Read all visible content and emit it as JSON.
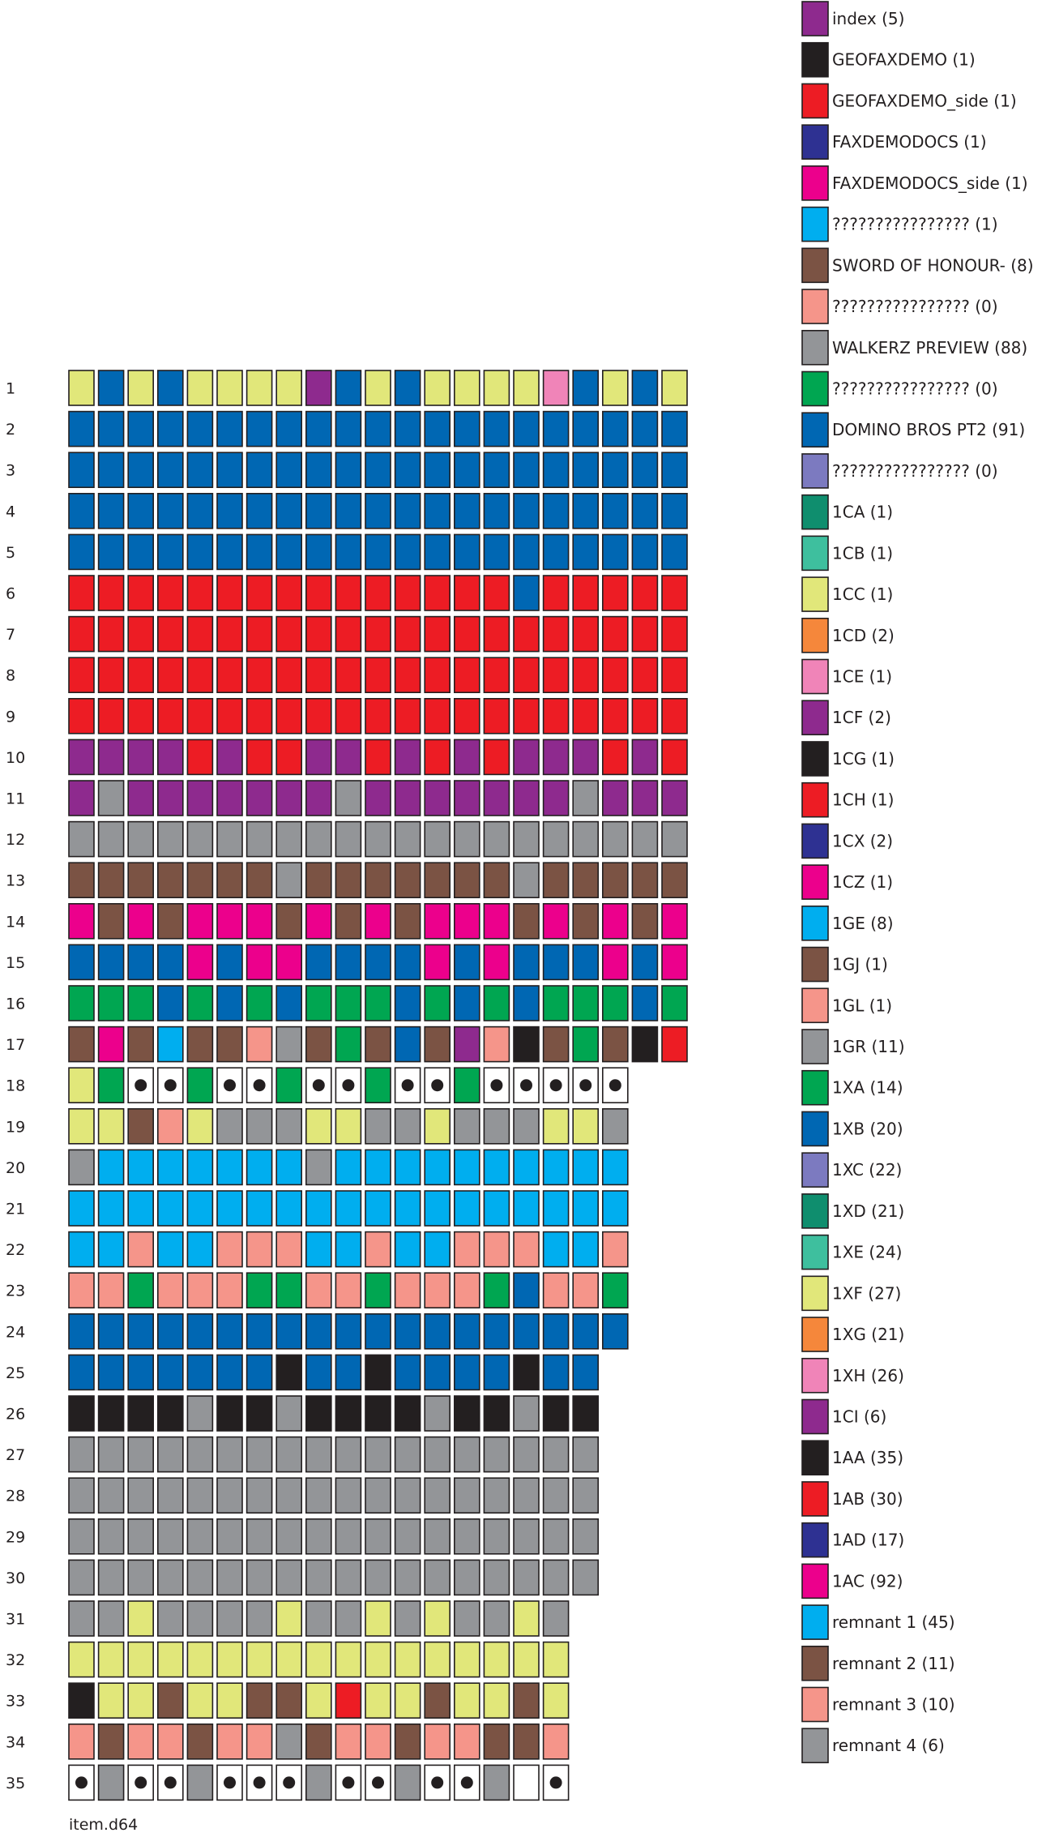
{
  "diagram": {
    "caption": "item.d64",
    "tracks": [
      {
        "label": "1",
        "cells": [
          14,
          10,
          14,
          10,
          14,
          14,
          14,
          14,
          17,
          10,
          14,
          10,
          14,
          14,
          14,
          14,
          16,
          10,
          14,
          10,
          14
        ]
      },
      {
        "label": "2",
        "cells": [
          10,
          10,
          10,
          10,
          10,
          10,
          10,
          10,
          10,
          10,
          10,
          10,
          10,
          10,
          10,
          10,
          10,
          10,
          10,
          10,
          10
        ]
      },
      {
        "label": "3",
        "cells": [
          10,
          10,
          10,
          10,
          10,
          10,
          10,
          10,
          10,
          10,
          10,
          10,
          10,
          10,
          10,
          10,
          10,
          10,
          10,
          10,
          10
        ]
      },
      {
        "label": "4",
        "cells": [
          10,
          10,
          10,
          10,
          10,
          10,
          10,
          10,
          10,
          10,
          10,
          10,
          10,
          10,
          10,
          10,
          10,
          10,
          10,
          10,
          10
        ]
      },
      {
        "label": "5",
        "cells": [
          10,
          10,
          10,
          10,
          10,
          10,
          10,
          10,
          10,
          10,
          10,
          10,
          10,
          10,
          10,
          10,
          10,
          10,
          10,
          10,
          10
        ]
      },
      {
        "label": "6",
        "cells": [
          19,
          19,
          19,
          19,
          19,
          19,
          19,
          19,
          19,
          19,
          19,
          19,
          19,
          19,
          19,
          10,
          19,
          19,
          19,
          19,
          19
        ]
      },
      {
        "label": "7",
        "cells": [
          19,
          19,
          19,
          19,
          19,
          19,
          19,
          19,
          19,
          19,
          19,
          19,
          19,
          19,
          19,
          19,
          19,
          19,
          19,
          19,
          19
        ]
      },
      {
        "label": "8",
        "cells": [
          19,
          19,
          19,
          19,
          19,
          19,
          19,
          19,
          19,
          19,
          19,
          19,
          19,
          19,
          19,
          19,
          19,
          19,
          19,
          19,
          19
        ]
      },
      {
        "label": "9",
        "cells": [
          19,
          19,
          19,
          19,
          19,
          19,
          19,
          19,
          19,
          19,
          19,
          19,
          19,
          19,
          19,
          19,
          19,
          19,
          19,
          19,
          19
        ]
      },
      {
        "label": "10",
        "cells": [
          17,
          17,
          17,
          17,
          19,
          17,
          19,
          19,
          17,
          17,
          19,
          17,
          19,
          17,
          19,
          17,
          17,
          17,
          19,
          17,
          19
        ]
      },
      {
        "label": "11",
        "cells": [
          17,
          25,
          17,
          17,
          17,
          17,
          17,
          17,
          17,
          25,
          17,
          17,
          17,
          17,
          17,
          17,
          17,
          25,
          17,
          17,
          17
        ]
      },
      {
        "label": "12",
        "cells": [
          25,
          25,
          25,
          25,
          25,
          25,
          25,
          25,
          25,
          25,
          25,
          25,
          25,
          25,
          25,
          25,
          25,
          25,
          25,
          25,
          25
        ]
      },
      {
        "label": "13",
        "cells": [
          23,
          23,
          23,
          23,
          23,
          23,
          23,
          25,
          23,
          23,
          23,
          23,
          23,
          23,
          23,
          25,
          23,
          23,
          23,
          23,
          23
        ]
      },
      {
        "label": "14",
        "cells": [
          21,
          23,
          21,
          23,
          21,
          21,
          21,
          23,
          21,
          23,
          21,
          23,
          21,
          21,
          21,
          23,
          21,
          23,
          21,
          23,
          21
        ]
      },
      {
        "label": "15",
        "cells": [
          10,
          10,
          10,
          10,
          21,
          10,
          21,
          21,
          10,
          10,
          10,
          10,
          21,
          10,
          21,
          10,
          10,
          10,
          21,
          10,
          21
        ]
      },
      {
        "label": "16",
        "cells": [
          9,
          9,
          9,
          10,
          9,
          10,
          9,
          10,
          9,
          9,
          9,
          10,
          9,
          10,
          9,
          10,
          9,
          9,
          9,
          10,
          9
        ]
      },
      {
        "label": "17",
        "cells": [
          6,
          21,
          6,
          22,
          6,
          23,
          24,
          25,
          6,
          26,
          6,
          27,
          6,
          17,
          24,
          18,
          6,
          26,
          6,
          18,
          19
        ]
      },
      {
        "label": "18",
        "cells": [
          14,
          26,
          -1,
          -1,
          26,
          -1,
          -1,
          26,
          -1,
          -1,
          26,
          -1,
          -1,
          26,
          -1,
          -1,
          -1,
          -1,
          -1
        ]
      },
      {
        "label": "19",
        "cells": [
          14,
          14,
          6,
          7,
          14,
          8,
          8,
          8,
          14,
          14,
          8,
          8,
          14,
          8,
          8,
          8,
          14,
          14,
          8
        ]
      },
      {
        "label": "20",
        "cells": [
          8,
          22,
          22,
          22,
          22,
          22,
          22,
          22,
          8,
          22,
          22,
          22,
          22,
          22,
          22,
          22,
          22,
          22,
          22
        ]
      },
      {
        "label": "21",
        "cells": [
          22,
          22,
          22,
          22,
          22,
          22,
          22,
          22,
          22,
          22,
          22,
          22,
          22,
          22,
          22,
          22,
          22,
          22,
          22
        ]
      },
      {
        "label": "22",
        "cells": [
          22,
          22,
          24,
          22,
          22,
          24,
          24,
          24,
          22,
          22,
          24,
          22,
          22,
          24,
          24,
          24,
          22,
          22,
          24
        ]
      },
      {
        "label": "23",
        "cells": [
          24,
          24,
          26,
          24,
          24,
          24,
          26,
          26,
          24,
          24,
          26,
          24,
          24,
          24,
          26,
          27,
          24,
          24,
          26
        ]
      },
      {
        "label": "24",
        "cells": [
          27,
          27,
          27,
          27,
          27,
          27,
          27,
          27,
          27,
          27,
          27,
          27,
          27,
          27,
          27,
          27,
          27,
          27,
          27
        ]
      },
      {
        "label": "25",
        "cells": [
          27,
          27,
          27,
          27,
          27,
          27,
          27,
          18,
          27,
          27,
          18,
          27,
          27,
          27,
          27,
          18,
          27,
          27
        ]
      },
      {
        "label": "26",
        "cells": [
          18,
          18,
          18,
          18,
          8,
          18,
          18,
          8,
          18,
          18,
          18,
          18,
          8,
          18,
          18,
          8,
          18,
          18
        ]
      },
      {
        "label": "27",
        "cells": [
          8,
          8,
          8,
          8,
          8,
          8,
          8,
          8,
          8,
          8,
          8,
          8,
          8,
          8,
          8,
          8,
          8,
          8
        ]
      },
      {
        "label": "28",
        "cells": [
          8,
          8,
          8,
          8,
          8,
          8,
          8,
          8,
          8,
          8,
          8,
          8,
          8,
          8,
          8,
          8,
          8,
          8
        ]
      },
      {
        "label": "29",
        "cells": [
          8,
          8,
          8,
          8,
          8,
          8,
          8,
          8,
          8,
          8,
          8,
          8,
          8,
          8,
          8,
          8,
          8,
          8
        ]
      },
      {
        "label": "30",
        "cells": [
          8,
          8,
          8,
          8,
          8,
          8,
          8,
          8,
          8,
          8,
          8,
          8,
          8,
          8,
          8,
          8,
          8,
          8
        ]
      },
      {
        "label": "31",
        "cells": [
          8,
          8,
          14,
          8,
          8,
          8,
          8,
          14,
          8,
          8,
          14,
          8,
          14,
          8,
          8,
          14,
          8
        ]
      },
      {
        "label": "32",
        "cells": [
          14,
          14,
          14,
          14,
          14,
          14,
          14,
          14,
          14,
          14,
          14,
          14,
          14,
          14,
          14,
          14,
          14
        ]
      },
      {
        "label": "33",
        "cells": [
          18,
          14,
          14,
          6,
          14,
          14,
          6,
          6,
          14,
          19,
          14,
          14,
          6,
          14,
          14,
          6,
          14
        ]
      },
      {
        "label": "34",
        "cells": [
          7,
          6,
          7,
          7,
          6,
          7,
          7,
          8,
          6,
          7,
          7,
          6,
          7,
          7,
          6,
          6,
          7
        ]
      },
      {
        "label": "35",
        "cells": [
          -1,
          8,
          -1,
          -1,
          8,
          -1,
          -1,
          -1,
          8,
          -1,
          -1,
          8,
          -1,
          -1,
          8,
          -2,
          -1
        ]
      }
    ]
  },
  "legend": [
    {
      "label": "index (5)",
      "color": "#8e2a8e"
    },
    {
      "label": "GEOFAXDEMO (1)",
      "color": "#231f20"
    },
    {
      "label": "GEOFAXDEMO_side (1)",
      "color": "#ed1c24"
    },
    {
      "label": "FAXDEMODOCS (1)",
      "color": "#2e3192"
    },
    {
      "label": "FAXDEMODOCS_side (1)",
      "color": "#ec008c"
    },
    {
      "label": "???????????????? (1)",
      "color": "#00aeef"
    },
    {
      "label": "SWORD OF HONOUR- (8)",
      "color": "#7b5344"
    },
    {
      "label": "???????????????? (0)",
      "color": "#f5958a"
    },
    {
      "label": "WALKERZ PREVIEW (88)",
      "color": "#939598"
    },
    {
      "label": "???????????????? (0)",
      "color": "#00a651"
    },
    {
      "label": "DOMINO BROS PT2 (91)",
      "color": "#0067b3"
    },
    {
      "label": "???????????????? (0)",
      "color": "#7c7ac0"
    },
    {
      "label": "1CA (1)",
      "color": "#0f8e6e"
    },
    {
      "label": "1CB (1)",
      "color": "#3ebf9e"
    },
    {
      "label": "1CC (1)",
      "color": "#e1e77a"
    },
    {
      "label": "1CD (2)",
      "color": "#f5873b"
    },
    {
      "label": "1CE (1)",
      "color": "#f084b8"
    },
    {
      "label": "1CF (2)",
      "color": "#8e2a8e"
    },
    {
      "label": "1CG (1)",
      "color": "#231f20"
    },
    {
      "label": "1CH (1)",
      "color": "#ed1c24"
    },
    {
      "label": "1CX (2)",
      "color": "#2e3192"
    },
    {
      "label": "1CZ (1)",
      "color": "#ec008c"
    },
    {
      "label": "1GE (8)",
      "color": "#00aeef"
    },
    {
      "label": "1GJ (1)",
      "color": "#7b5344"
    },
    {
      "label": "1GL (1)",
      "color": "#f5958a"
    },
    {
      "label": "1GR (11)",
      "color": "#939598"
    },
    {
      "label": "1XA (14)",
      "color": "#00a651"
    },
    {
      "label": "1XB (20)",
      "color": "#0067b3"
    },
    {
      "label": "1XC (22)",
      "color": "#7c7ac0"
    },
    {
      "label": "1XD (21)",
      "color": "#0f8e6e"
    },
    {
      "label": "1XE (24)",
      "color": "#3ebf9e"
    },
    {
      "label": "1XF (27)",
      "color": "#e1e77a"
    },
    {
      "label": "1XG (21)",
      "color": "#f5873b"
    },
    {
      "label": "1XH (26)",
      "color": "#f084b8"
    },
    {
      "label": "1CI (6)",
      "color": "#8e2a8e"
    },
    {
      "label": "1AA (35)",
      "color": "#231f20"
    },
    {
      "label": "1AB (30)",
      "color": "#ed1c24"
    },
    {
      "label": "1AD (17)",
      "color": "#2e3192"
    },
    {
      "label": "1AC (92)",
      "color": "#ec008c"
    },
    {
      "label": "remnant 1 (45)",
      "color": "#00aeef"
    },
    {
      "label": "remnant 2 (11)",
      "color": "#7b5344"
    },
    {
      "label": "remnant 3 (10)",
      "color": "#f5958a"
    },
    {
      "label": "remnant 4 (6)",
      "color": "#939598"
    }
  ]
}
